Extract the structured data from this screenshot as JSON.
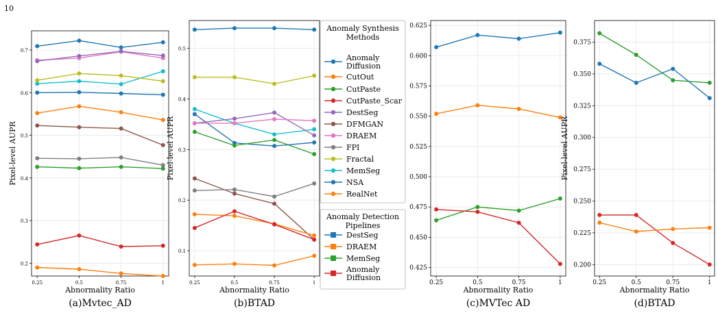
{
  "page_number": "10",
  "legend_methods": {
    "title": "Anomaly Synthesis\nMethods",
    "entries": [
      {
        "name": "Anomaly\nDiffusion",
        "color": "#1f77b4"
      },
      {
        "name": "CutOut",
        "color": "#ff7f0e"
      },
      {
        "name": "CutPaste",
        "color": "#2ca02c"
      },
      {
        "name": "CutPaste_Scar",
        "color": "#d62728"
      },
      {
        "name": "DestSeg",
        "color": "#9467bd"
      },
      {
        "name": "DFMGAN",
        "color": "#8c564b"
      },
      {
        "name": "DRAEM",
        "color": "#e377c2"
      },
      {
        "name": "FPI",
        "color": "#7f7f7f"
      },
      {
        "name": "Fractal",
        "color": "#bcbd22"
      },
      {
        "name": "MemSeg",
        "color": "#17becf"
      },
      {
        "name": "NSA",
        "color": "#1f77b4"
      },
      {
        "name": "RealNet",
        "color": "#ff7f0e"
      }
    ]
  },
  "legend_pipelines": {
    "title": "Anomaly Detection\nPipelines",
    "entries": [
      {
        "name": "DestSeg",
        "color": "#1f77b4"
      },
      {
        "name": "DRAEM",
        "color": "#ff7f0e"
      },
      {
        "name": "MemSeg",
        "color": "#2ca02c"
      },
      {
        "name": "Anomaly\nDiffusion",
        "color": "#d62728"
      }
    ]
  },
  "chart_data": [
    {
      "type": "line",
      "caption": "(a)Mvtec_AD",
      "xlabel": "Abnormality Ratio",
      "ylabel": "Pixel-level AUPR",
      "x": [
        0.25,
        0.5,
        0.75,
        1
      ],
      "xticks": [
        "0.25",
        "0.5",
        "0.75",
        "1"
      ],
      "ylim": [
        0.17,
        0.745
      ],
      "yticks": [
        0.2,
        0.3,
        0.4,
        0.5,
        0.6,
        0.7
      ],
      "ytick_labels": [
        "0.2",
        "0.3",
        "0.4",
        "0.5",
        "0.6",
        "0.7"
      ],
      "series": [
        {
          "name": "NSA",
          "color": "#1f77b4",
          "values": [
            0.709,
            0.722,
            0.706,
            0.718
          ]
        },
        {
          "name": "DRAEM",
          "color": "#e377c2",
          "values": [
            0.676,
            0.681,
            0.696,
            0.681
          ]
        },
        {
          "name": "DestSeg",
          "color": "#9467bd",
          "values": [
            0.674,
            0.686,
            0.697,
            0.687
          ]
        },
        {
          "name": "MemSeg",
          "color": "#17becf",
          "values": [
            0.621,
            0.627,
            0.62,
            0.65
          ]
        },
        {
          "name": "Fractal",
          "color": "#bcbd22",
          "values": [
            0.629,
            0.645,
            0.64,
            0.627
          ]
        },
        {
          "name": "Anomaly Diffusion",
          "color": "#1f77b4",
          "values": [
            0.6,
            0.601,
            0.598,
            0.595
          ]
        },
        {
          "name": "RealNet",
          "color": "#ff7f0e",
          "values": [
            0.552,
            0.568,
            0.554,
            0.536
          ]
        },
        {
          "name": "DFMGAN",
          "color": "#8c564b",
          "values": [
            0.523,
            0.519,
            0.516,
            0.477
          ]
        },
        {
          "name": "FPI",
          "color": "#7f7f7f",
          "values": [
            0.446,
            0.445,
            0.448,
            0.43
          ]
        },
        {
          "name": "CutPaste",
          "color": "#2ca02c",
          "values": [
            0.426,
            0.423,
            0.426,
            0.422
          ]
        },
        {
          "name": "CutPaste_Scar",
          "color": "#d62728",
          "values": [
            0.244,
            0.265,
            0.239,
            0.241
          ]
        },
        {
          "name": "CutOut",
          "color": "#ff7f0e",
          "values": [
            0.19,
            0.186,
            0.176,
            0.17
          ]
        }
      ]
    },
    {
      "type": "line",
      "caption": "(b)BTAD",
      "xlabel": "Abnormality Ratio",
      "ylabel": "Pixel-level AUPR",
      "x": [
        0.25,
        0.5,
        0.75,
        1
      ],
      "xticks": [
        "0.25",
        "0.5",
        "0.75",
        "1"
      ],
      "ylim": [
        0.05,
        0.555
      ],
      "yticks": [
        0.1,
        0.2,
        0.3,
        0.4,
        0.5
      ],
      "ytick_labels": [
        "0.1",
        "0.2",
        "0.3",
        "0.4",
        "0.5"
      ],
      "series": [
        {
          "name": "NSA",
          "color": "#1f77b4",
          "values": [
            0.537,
            0.54,
            0.54,
            0.537
          ]
        },
        {
          "name": "Fractal",
          "color": "#bcbd22",
          "values": [
            0.443,
            0.443,
            0.43,
            0.446
          ]
        },
        {
          "name": "MemSeg",
          "color": "#17becf",
          "values": [
            0.38,
            0.352,
            0.33,
            0.34
          ]
        },
        {
          "name": "Anomaly Diffusion",
          "color": "#1f77b4",
          "values": [
            0.37,
            0.313,
            0.307,
            0.314
          ]
        },
        {
          "name": "DestSeg",
          "color": "#9467bd",
          "values": [
            0.352,
            0.361,
            0.373,
            0.328
          ]
        },
        {
          "name": "DRAEM",
          "color": "#e377c2",
          "values": [
            0.352,
            0.352,
            0.36,
            0.357
          ]
        },
        {
          "name": "CutPaste",
          "color": "#2ca02c",
          "values": [
            0.335,
            0.308,
            0.319,
            0.291
          ]
        },
        {
          "name": "DFMGAN",
          "color": "#8c564b",
          "values": [
            0.243,
            0.213,
            0.193,
            0.122
          ]
        },
        {
          "name": "FPI",
          "color": "#7f7f7f",
          "values": [
            0.219,
            0.221,
            0.207,
            0.233
          ]
        },
        {
          "name": "RealNet",
          "color": "#ff7f0e",
          "values": [
            0.172,
            0.169,
            0.153,
            0.13
          ]
        },
        {
          "name": "CutPaste_Scar",
          "color": "#d62728",
          "values": [
            0.145,
            0.178,
            0.152,
            0.122
          ]
        },
        {
          "name": "CutOut",
          "color": "#ff7f0e",
          "values": [
            0.072,
            0.074,
            0.071,
            0.09
          ]
        }
      ]
    },
    {
      "type": "line",
      "caption": "(c)MVTec AD",
      "xlabel": "Abnormality Ratio",
      "ylabel": "Pixel-level AUPR",
      "x": [
        0.25,
        0.5,
        0.75,
        1
      ],
      "xticks": [
        "0.25",
        "0.5",
        "0.75",
        "1"
      ],
      "ylim": [
        0.418,
        0.629
      ],
      "yticks": [
        0.425,
        0.45,
        0.475,
        0.5,
        0.525,
        0.55,
        0.575,
        0.6,
        0.625
      ],
      "ytick_labels": [
        "0.425",
        "0.450",
        "0.475",
        "0.500",
        "0.525",
        "0.550",
        "0.575",
        "0.600",
        "0.625"
      ],
      "series": [
        {
          "name": "DestSeg",
          "color": "#1f77b4",
          "values": [
            0.607,
            0.617,
            0.614,
            0.619
          ]
        },
        {
          "name": "DRAEM",
          "color": "#ff7f0e",
          "values": [
            0.552,
            0.559,
            0.556,
            0.549
          ]
        },
        {
          "name": "MemSeg",
          "color": "#2ca02c",
          "values": [
            0.464,
            0.475,
            0.472,
            0.482
          ]
        },
        {
          "name": "Anomaly Diffusion",
          "color": "#d62728",
          "values": [
            0.473,
            0.471,
            0.462,
            0.428
          ]
        }
      ]
    },
    {
      "type": "line",
      "caption": "(d)BTAD",
      "xlabel": "Abnormality Ratio",
      "ylabel": "Pixel-level AUPR",
      "x": [
        0.25,
        0.5,
        0.75,
        1
      ],
      "xticks": [
        "0.25",
        "0.5",
        "0.75",
        "1"
      ],
      "ylim": [
        0.191,
        0.392
      ],
      "yticks": [
        0.2,
        0.225,
        0.25,
        0.275,
        0.3,
        0.325,
        0.35,
        0.375
      ],
      "ytick_labels": [
        "0.200",
        "0.225",
        "0.250",
        "0.275",
        "0.300",
        "0.325",
        "0.350",
        "0.375"
      ],
      "series": [
        {
          "name": "MemSeg",
          "color": "#2ca02c",
          "values": [
            0.382,
            0.365,
            0.345,
            0.343
          ]
        },
        {
          "name": "DestSeg",
          "color": "#1f77b4",
          "values": [
            0.358,
            0.343,
            0.354,
            0.331
          ]
        },
        {
          "name": "Anomaly Diffusion",
          "color": "#d62728",
          "values": [
            0.239,
            0.239,
            0.217,
            0.2
          ]
        },
        {
          "name": "DRAEM",
          "color": "#ff7f0e",
          "values": [
            0.233,
            0.226,
            0.228,
            0.229
          ]
        }
      ]
    }
  ]
}
